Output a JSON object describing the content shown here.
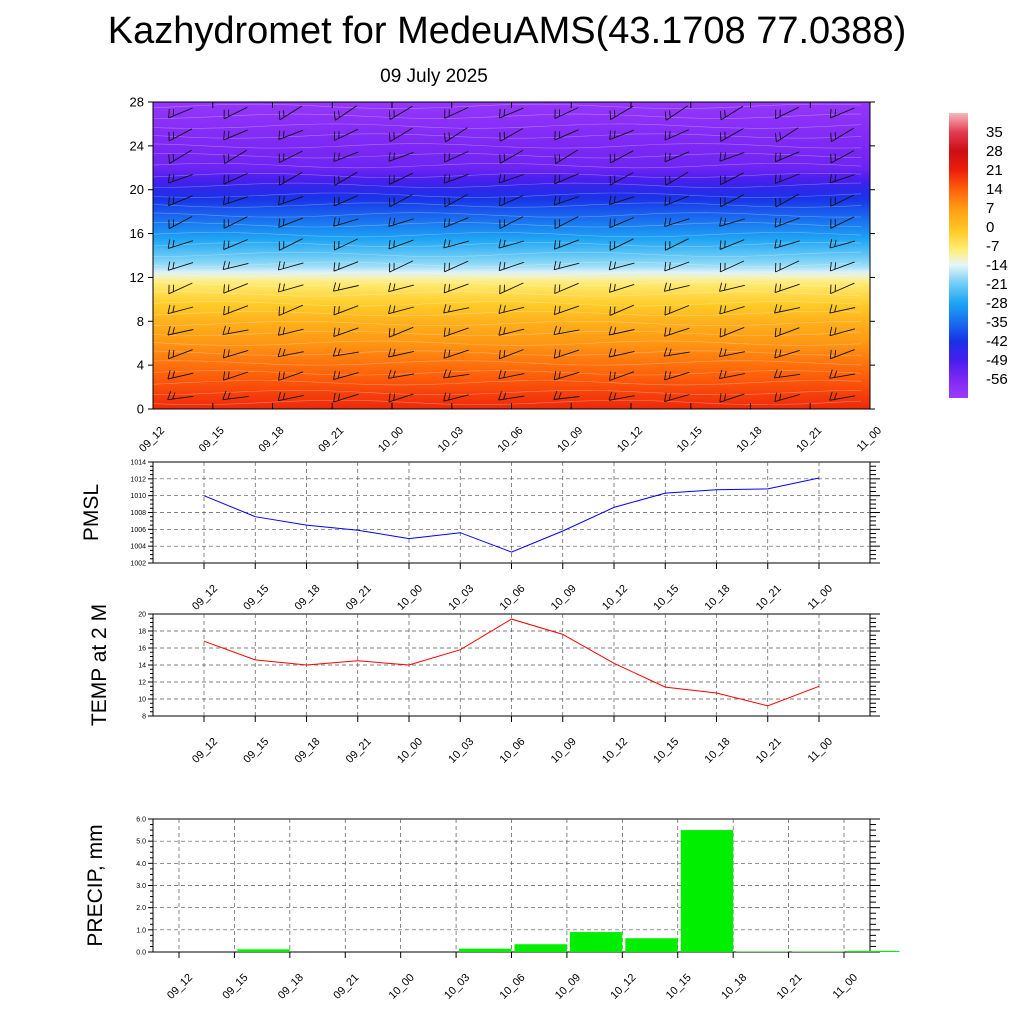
{
  "title": "Kazhydromet for MedeuAMS(43.1708 77.0388)",
  "subtitle": "09 July 2025",
  "time_labels": [
    "09_12",
    "09_15",
    "09_18",
    "09_21",
    "10_00",
    "10_03",
    "10_06",
    "10_09",
    "10_12",
    "10_15",
    "10_18",
    "10_21",
    "11_00"
  ],
  "colors": {
    "pmsl_line": "#0000ff",
    "temp_line": "#ff0000",
    "precip_bar": "#00ee00",
    "grid": "#555555",
    "barb": "#111111"
  },
  "chart_data": [
    {
      "type": "heatmap",
      "name": "temperature-wind-cross-section",
      "y_ticks": [
        0,
        4,
        8,
        12,
        16,
        20,
        24,
        28
      ],
      "ylim": [
        0,
        28
      ],
      "colorbar_labels": [
        "35",
        "28",
        "21",
        "14",
        "7",
        "0",
        "-7",
        "-14",
        "-21",
        "-28",
        "-35",
        "-42",
        "-49",
        "-56"
      ],
      "colorbar_range": [
        -63,
        42
      ],
      "surface_temperature": 20,
      "temperature_by_level": [
        [
          0,
          20
        ],
        [
          4,
          12
        ],
        [
          8,
          3
        ],
        [
          11.5,
          -8
        ],
        [
          13,
          -18
        ],
        [
          16,
          -30
        ],
        [
          20,
          -45
        ],
        [
          22,
          -54
        ],
        [
          24,
          -56
        ],
        [
          28,
          -61
        ]
      ]
    },
    {
      "type": "line",
      "ylabel": "PMSL",
      "ylim": [
        1002,
        1014
      ],
      "y_ticks": [
        1002,
        1004,
        1006,
        1008,
        1010,
        1012,
        1014
      ],
      "values": [
        1010.0,
        1007.5,
        1006.5,
        1005.9,
        1004.9,
        1005.6,
        1003.3,
        1005.8,
        1008.6,
        1010.3,
        1010.7,
        1010.8,
        1012.1
      ]
    },
    {
      "type": "line",
      "ylabel": "TEMP at 2 M",
      "ylim": [
        8,
        20
      ],
      "y_ticks": [
        8,
        10,
        12,
        14,
        16,
        18,
        20
      ],
      "values": [
        16.8,
        14.6,
        14.0,
        14.5,
        14.0,
        15.8,
        19.4,
        17.6,
        14.2,
        11.4,
        10.7,
        9.2,
        11.5
      ]
    },
    {
      "type": "bar",
      "ylabel": "PRECIP, mm",
      "ylim": [
        0,
        6
      ],
      "y_tick_labels": [
        "0.0",
        "1.0",
        "2.0",
        "3.0",
        "4.0",
        "5.0",
        "6.0"
      ],
      "values": [
        0.0,
        0.12,
        0.0,
        0.0,
        0.0,
        0.15,
        0.35,
        0.9,
        0.62,
        5.5,
        0.02,
        0.02,
        0.05
      ]
    }
  ]
}
